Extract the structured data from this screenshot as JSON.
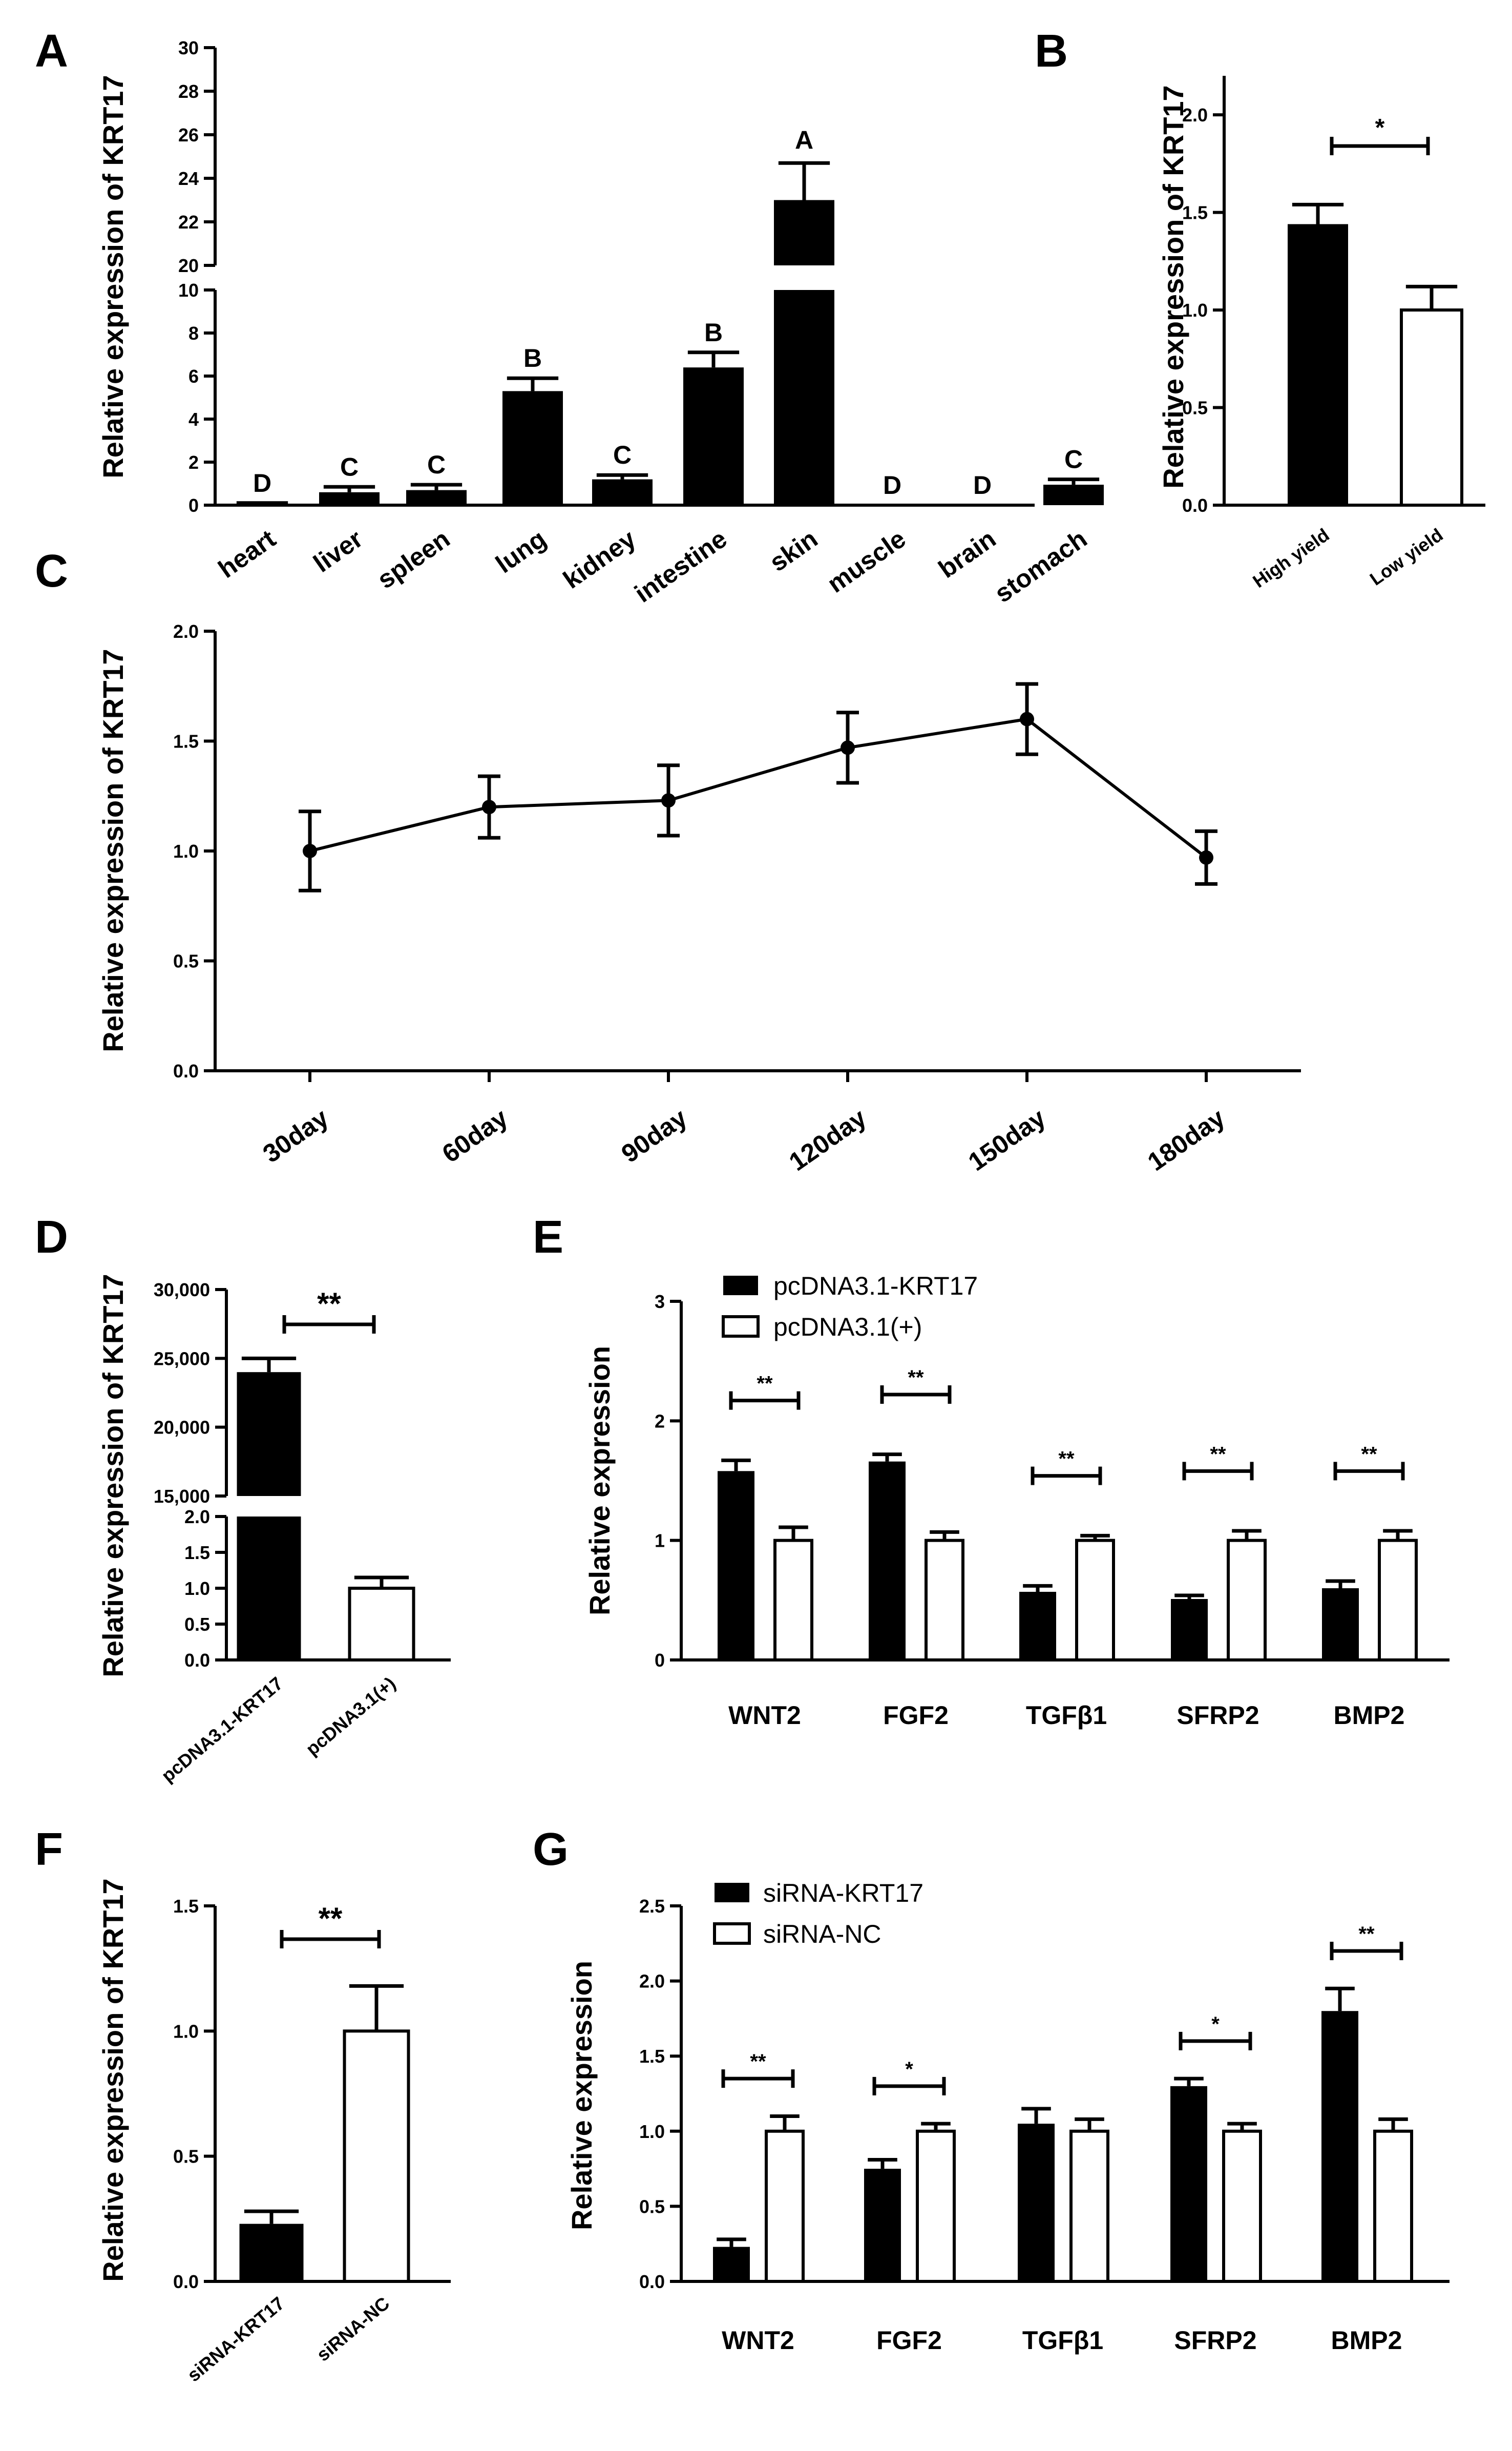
{
  "chart_data": [
    {
      "panel": "A",
      "type": "bar",
      "ylabel": "Relative expression of  KRT17",
      "categories": [
        "heart",
        "liver",
        "spleen",
        "lung",
        "kidney",
        "intestine",
        "skin",
        "muscle",
        "brain",
        "stomach"
      ],
      "values": [
        0.05,
        0.6,
        0.7,
        5.3,
        1.2,
        6.4,
        23.0,
        0.0,
        0.0,
        0.95
      ],
      "errors": [
        0.05,
        0.25,
        0.25,
        0.6,
        0.2,
        0.7,
        1.7,
        0,
        0,
        0.25
      ],
      "letters": [
        "D",
        "C",
        "C",
        "B",
        "C",
        "B",
        "A",
        "D",
        "D",
        "C"
      ],
      "axis_lower": {
        "ylim": [
          0,
          10
        ],
        "ticks": [
          "0",
          "2",
          "4",
          "6",
          "8",
          "10"
        ]
      },
      "axis_upper": {
        "ylim": [
          20,
          30
        ],
        "ticks": [
          "20",
          "22",
          "24",
          "26",
          "28",
          "30"
        ]
      }
    },
    {
      "panel": "B",
      "type": "bar",
      "ylabel": "Relative expression of  KRT17",
      "categories": [
        "High yield",
        "Low yield"
      ],
      "values": [
        1.44,
        1.0
      ],
      "errors": [
        0.1,
        0.12
      ],
      "ylim": [
        0,
        2.2
      ],
      "ticks": [
        "0.0",
        "0.5",
        "1.0",
        "1.5",
        "2.0"
      ],
      "significance": "*"
    },
    {
      "panel": "C",
      "type": "line",
      "ylabel": "Relative expression of  KRT17",
      "categories": [
        "30day",
        "60day",
        "90day",
        "120day",
        "150day",
        "180day"
      ],
      "values": [
        1.0,
        1.2,
        1.23,
        1.47,
        1.6,
        0.97
      ],
      "errors": [
        0.18,
        0.14,
        0.16,
        0.16,
        0.16,
        0.12
      ],
      "ylim": [
        0,
        2.0
      ],
      "ticks": [
        "0.0",
        "0.5",
        "1.0",
        "1.5",
        "2.0"
      ]
    },
    {
      "panel": "D",
      "type": "bar",
      "ylabel": "Relative expression of  KRT17",
      "categories": [
        "pcDNA3.1-KRT17",
        "pcDNA3.1(+)"
      ],
      "values": [
        24000,
        1.0
      ],
      "errors": [
        1000,
        0.15
      ],
      "axis_lower": {
        "ylim": [
          0,
          2.0
        ],
        "ticks": [
          "0.0",
          "0.5",
          "1.0",
          "1.5",
          "2.0"
        ]
      },
      "axis_upper": {
        "ylim": [
          15000,
          30000
        ],
        "ticks": [
          "15,000",
          "20,000",
          "25,000",
          "30,000"
        ]
      },
      "significance": "**"
    },
    {
      "panel": "E",
      "type": "bar",
      "ylabel": "Relative expression",
      "categories": [
        "WNT2",
        "FGF2",
        "TGFβ1",
        "SFRP2",
        "BMP2"
      ],
      "series": [
        {
          "name": "pcDNA3.1-KRT17",
          "values": [
            1.58,
            1.66,
            0.57,
            0.51,
            0.6
          ],
          "errors": [
            0.09,
            0.06,
            0.05,
            0.03,
            0.06
          ]
        },
        {
          "name": "pcDNA3.1(+)",
          "values": [
            1.0,
            1.0,
            1.0,
            1.0,
            1.0
          ],
          "errors": [
            0.11,
            0.07,
            0.04,
            0.08,
            0.08
          ]
        }
      ],
      "ylim": [
        0,
        3
      ],
      "ticks": [
        "0",
        "1",
        "2",
        "3"
      ],
      "significance": [
        "**",
        "**",
        "**",
        "**",
        "**"
      ]
    },
    {
      "panel": "F",
      "type": "bar",
      "ylabel": "Relative expression of  KRT17",
      "categories": [
        "siRNA-KRT17",
        "siRNA-NC"
      ],
      "values": [
        0.23,
        1.0
      ],
      "errors": [
        0.05,
        0.18
      ],
      "ylim": [
        0,
        1.5
      ],
      "ticks": [
        "0.0",
        "0.5",
        "1.0",
        "1.5"
      ],
      "significance": "**"
    },
    {
      "panel": "G",
      "type": "bar",
      "ylabel": "Relative expression",
      "categories": [
        "WNT2",
        "FGF2",
        "TGFβ1",
        "SFRP2",
        "BMP2"
      ],
      "series": [
        {
          "name": "siRNA-KRT17",
          "values": [
            0.23,
            0.75,
            1.05,
            1.3,
            1.8
          ],
          "errors": [
            0.05,
            0.06,
            0.1,
            0.05,
            0.15
          ]
        },
        {
          "name": "siRNA-NC",
          "values": [
            1.0,
            1.0,
            1.0,
            1.0,
            1.0
          ],
          "errors": [
            0.1,
            0.05,
            0.08,
            0.05,
            0.08
          ]
        }
      ],
      "ylim": [
        0,
        2.5
      ],
      "ticks": [
        "0.0",
        "0.5",
        "1.0",
        "1.5",
        "2.0",
        "2.5"
      ],
      "significance": [
        "**",
        "*",
        "",
        "*",
        "**"
      ]
    }
  ]
}
